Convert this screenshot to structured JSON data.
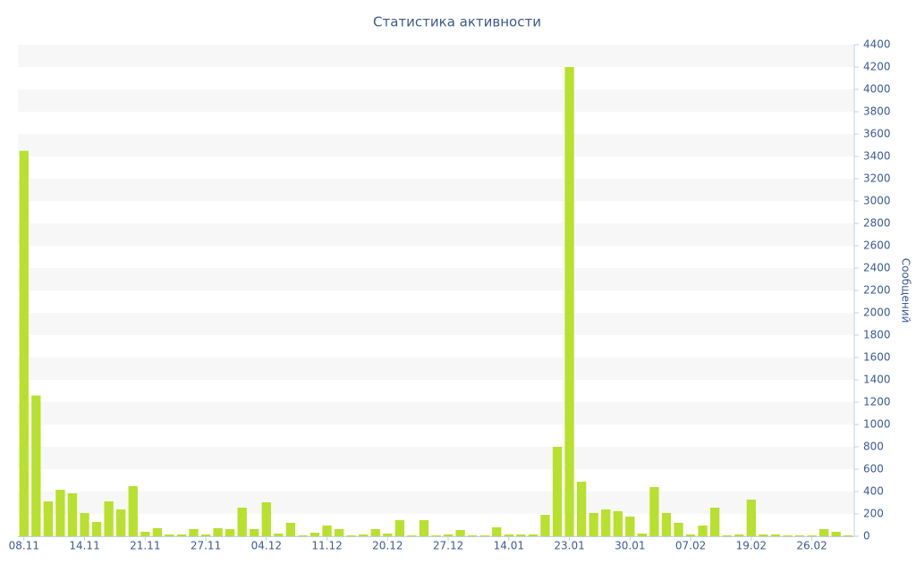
{
  "chart_data": {
    "type": "bar",
    "title": "Статистика активности",
    "y_axis_label": "Сообщений",
    "y_axis_side": "right",
    "categories": [
      "08.11",
      null,
      null,
      null,
      null,
      "14.11",
      null,
      null,
      null,
      null,
      "21.11",
      null,
      null,
      null,
      null,
      "27.11",
      null,
      null,
      null,
      null,
      "04.12",
      null,
      null,
      null,
      null,
      "11.12",
      null,
      null,
      null,
      null,
      "20.12",
      null,
      null,
      null,
      null,
      "27.12",
      null,
      null,
      null,
      null,
      "14.01",
      null,
      null,
      null,
      null,
      "23.01",
      null,
      null,
      null,
      null,
      "30.01",
      null,
      null,
      null,
      null,
      "07.02",
      null,
      null,
      null,
      null,
      "19.02",
      null,
      null,
      null,
      null,
      "26.02",
      null,
      null,
      null
    ],
    "values": [
      3450,
      1260,
      312,
      416,
      384,
      208,
      128,
      312,
      240,
      448,
      40,
      72,
      16,
      16,
      64,
      16,
      72,
      64,
      256,
      64,
      304,
      24,
      120,
      8,
      32,
      96,
      64,
      8,
      16,
      64,
      24,
      144,
      8,
      144,
      8,
      16,
      56,
      8,
      8,
      80,
      16,
      16,
      16,
      192,
      800,
      4200,
      488,
      208,
      240,
      224,
      176,
      24,
      440,
      208,
      120,
      16,
      96,
      256,
      8,
      16,
      328,
      16,
      16,
      8,
      8,
      8,
      64,
      40,
      8
    ],
    "color": "#b8e02e",
    "ylim": [
      0,
      4400
    ],
    "yticks": [
      0,
      200,
      400,
      600,
      800,
      1000,
      1200,
      1400,
      1600,
      1800,
      2000,
      2200,
      2400,
      2600,
      2800,
      3000,
      3200,
      3400,
      3600,
      3800,
      4000,
      4200,
      4400
    ],
    "grid": true
  }
}
